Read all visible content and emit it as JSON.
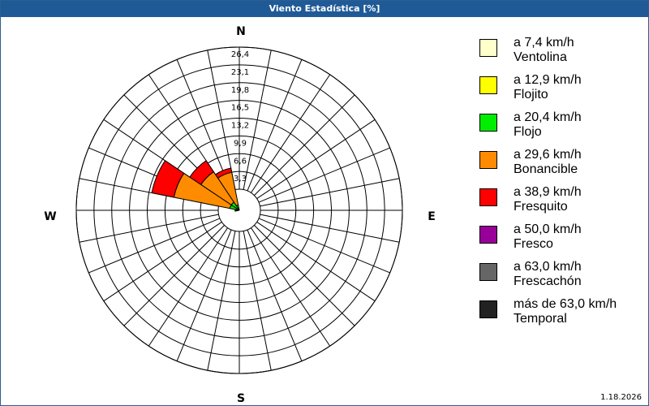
{
  "window": {
    "title": "Viento Estadística [%]",
    "version": "1.18.2026"
  },
  "compass": {
    "north": "N",
    "south": "S",
    "east": "E",
    "west": "W"
  },
  "chart_data": {
    "type": "wind-rose",
    "title": "Viento Estadística [%]",
    "rings": [
      "3,3",
      "6,6",
      "9,9",
      "13,2",
      "16,5",
      "19,8",
      "23,1",
      "26,4"
    ],
    "ring_values": [
      3.3,
      6.6,
      9.9,
      13.2,
      16.5,
      19.8,
      23.1,
      26.4
    ],
    "rmax": 26.4,
    "sectors": 16,
    "grid": true,
    "legend_position": "right",
    "categories": [
      {
        "speed": "a 7,4 km/h",
        "name": "Ventolina",
        "color": "#ffffcc"
      },
      {
        "speed": "a 12,9 km/h",
        "name": "Flojito",
        "color": "#ffff00"
      },
      {
        "speed": "a 20,4 km/h",
        "name": "Flojo",
        "color": "#00ee00"
      },
      {
        "speed": "a 29,6 km/h",
        "name": "Bonancible",
        "color": "#ff8c00"
      },
      {
        "speed": "a 38,9 km/h",
        "name": "Fresquito",
        "color": "#ff0000"
      },
      {
        "speed": "a 50,0 km/h",
        "name": "Fresco",
        "color": "#990099"
      },
      {
        "speed": "a 63,0 km/h",
        "name": "Frescachón",
        "color": "#666666"
      },
      {
        "speed": "más de 63,0 km/h",
        "name": "Temporal",
        "color": "#222222"
      }
    ],
    "directions": [
      {
        "bearing": 337.5,
        "values": [
          0,
          0.2,
          0.8,
          6.2,
          0.8,
          0,
          0,
          0
        ]
      },
      {
        "bearing": 315.0,
        "values": [
          0,
          0.3,
          1.5,
          6.8,
          2.5,
          0,
          0,
          0
        ]
      },
      {
        "bearing": 292.5,
        "values": [
          0,
          0.2,
          1.6,
          10.6,
          4.2,
          0,
          0,
          0
        ]
      },
      {
        "bearing": 270.0,
        "values": [
          0,
          0,
          0,
          0.6,
          0.2,
          0,
          0,
          0
        ]
      }
    ]
  }
}
